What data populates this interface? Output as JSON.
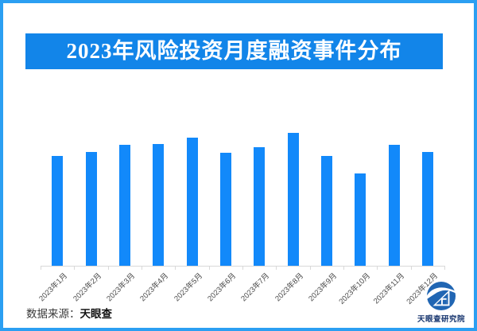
{
  "frame": {
    "border_color": "#2b9ff2"
  },
  "title_banner": {
    "text": "2023年风险投资月度融资事件分布",
    "bg_color": "#1285e9",
    "text_color": "#ffffff"
  },
  "chart_data": {
    "type": "bar",
    "title": "2023年风险投资月度融资事件分布",
    "categories": [
      "2023年1月",
      "2023年2月",
      "2023年3月",
      "2023年4月",
      "2023年5月",
      "2023年6月",
      "2023年7月",
      "2023年8月",
      "2023年9月",
      "2023年10月",
      "2023年11月",
      "2023年12月"
    ],
    "values": [
      82.6,
      85.6,
      91.0,
      91.6,
      96.4,
      85.0,
      89.2,
      100.0,
      82.6,
      69.5,
      91.0,
      85.6
    ],
    "value_scale": "relative bar height, max month (2023年8月) = 100; no y-axis or value labels shown in chart",
    "xlabel": "",
    "ylabel": "",
    "grid": false,
    "legend": false,
    "bar_color": "#1289fa",
    "axis_line_color": "#d9d9d9",
    "tick_label_color": "#4a4a4a",
    "x_label_rotation_deg": 45
  },
  "footer": {
    "source_label": "数据来源：",
    "source_value": "天眼查"
  },
  "logo": {
    "icon": "tianyancha-eye-logo-icon",
    "text": "天眼查研究院",
    "icon_color": "#2166b3",
    "text_color": "#16356e"
  }
}
